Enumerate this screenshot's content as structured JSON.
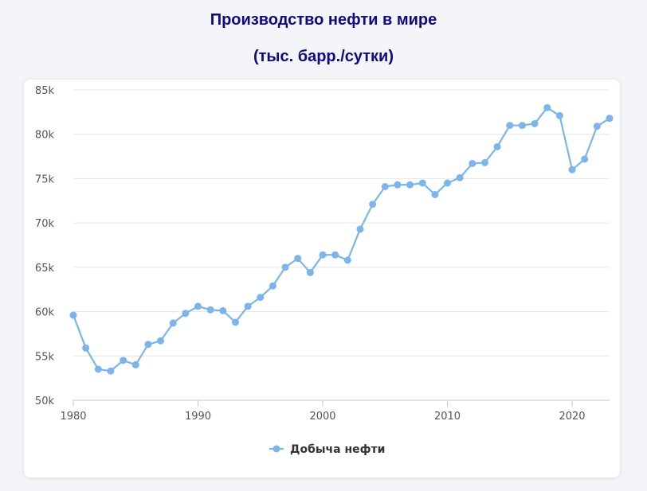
{
  "title_line1": "Производство нефти в мире",
  "title_line2": "(тыс. барр./сутки)",
  "chart_data": {
    "type": "line",
    "title": "Производство нефти в мире (тыс. барр./сутки)",
    "xlabel": "",
    "ylabel": "",
    "xlim": [
      1980,
      2023
    ],
    "ylim": [
      50000,
      85000
    ],
    "y_ticks": [
      50000,
      55000,
      60000,
      65000,
      70000,
      75000,
      80000,
      85000
    ],
    "y_tick_labels": [
      "50k",
      "55k",
      "60k",
      "65k",
      "70k",
      "75k",
      "80k",
      "85k"
    ],
    "x_ticks": [
      1980,
      1990,
      2000,
      2010,
      2020
    ],
    "x_tick_labels": [
      "1980",
      "1990",
      "2000",
      "2010",
      "2020"
    ],
    "grid": true,
    "legend_position": "bottom-center",
    "color": "#7cb5ec",
    "series": [
      {
        "name": "Добыча нефти",
        "x": [
          1980,
          1981,
          1982,
          1983,
          1984,
          1985,
          1986,
          1987,
          1988,
          1989,
          1990,
          1991,
          1992,
          1993,
          1994,
          1995,
          1996,
          1997,
          1998,
          1999,
          2000,
          2001,
          2002,
          2003,
          2004,
          2005,
          2006,
          2007,
          2008,
          2009,
          2010,
          2011,
          2012,
          2013,
          2014,
          2015,
          2016,
          2017,
          2018,
          2019,
          2020,
          2021,
          2022,
          2023
        ],
        "values": [
          59600,
          55900,
          53500,
          53300,
          54500,
          54000,
          56300,
          56700,
          58700,
          59800,
          60600,
          60200,
          60100,
          58800,
          60600,
          61600,
          62900,
          65000,
          66000,
          64400,
          66400,
          66400,
          65800,
          69300,
          72100,
          74100,
          74300,
          74300,
          74500,
          73200,
          74500,
          75100,
          76700,
          76800,
          78600,
          81000,
          81000,
          81200,
          83000,
          82100,
          76000,
          77200,
          80900,
          81800
        ]
      }
    ]
  }
}
